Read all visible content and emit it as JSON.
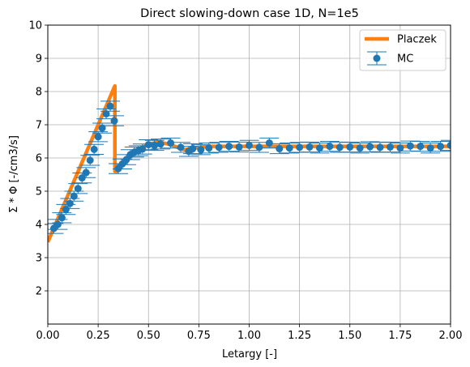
{
  "chart_data": {
    "type": "line",
    "title": "Direct slowing-down case 1D, N=1e5",
    "xlabel": "Letargy [-]",
    "ylabel": "Σ * Φ [-/cm3/s]",
    "xlim": [
      0,
      2
    ],
    "ylim": [
      1,
      10
    ],
    "xticks": [
      "0.00",
      "0.25",
      "0.50",
      "0.75",
      "1.00",
      "1.25",
      "1.50",
      "1.75",
      "2.00"
    ],
    "yticks": [
      "2",
      "3",
      "4",
      "5",
      "6",
      "7",
      "8",
      "9",
      "10"
    ],
    "grid": true,
    "legend_position": "top-right",
    "colors": {
      "placzek": "#ff7f0e",
      "mc": "#1f77b4"
    },
    "series": [
      {
        "name": "Placzek",
        "kind": "line",
        "x": [
          0.0,
          0.333,
          0.333,
          0.345,
          0.38,
          0.42,
          0.46,
          0.5,
          0.55,
          0.6,
          0.666,
          0.68,
          0.71,
          0.75,
          0.8,
          0.9,
          1.0,
          1.1,
          1.2,
          1.3,
          1.4,
          1.5,
          1.6,
          1.7,
          1.8,
          1.9,
          2.0
        ],
        "y": [
          3.47,
          8.17,
          5.6,
          5.6,
          5.86,
          6.1,
          6.28,
          6.42,
          6.47,
          6.42,
          6.27,
          6.25,
          6.28,
          6.32,
          6.35,
          6.35,
          6.35,
          6.35,
          6.35,
          6.35,
          6.35,
          6.35,
          6.35,
          6.35,
          6.35,
          6.35,
          6.35
        ]
      },
      {
        "name": "MC",
        "kind": "errorbar",
        "x": [
          0.03,
          0.05,
          0.07,
          0.09,
          0.11,
          0.13,
          0.15,
          0.17,
          0.19,
          0.21,
          0.23,
          0.25,
          0.27,
          0.29,
          0.31,
          0.33,
          0.35,
          0.37,
          0.39,
          0.41,
          0.43,
          0.45,
          0.47,
          0.5,
          0.53,
          0.56,
          0.61,
          0.66,
          0.7,
          0.72,
          0.76,
          0.8,
          0.85,
          0.9,
          0.95,
          1.0,
          1.05,
          1.1,
          1.15,
          1.2,
          1.25,
          1.3,
          1.35,
          1.4,
          1.45,
          1.5,
          1.55,
          1.6,
          1.65,
          1.7,
          1.75,
          1.8,
          1.85,
          1.9,
          1.95,
          2.0
        ],
        "y": [
          3.88,
          4.0,
          4.2,
          4.45,
          4.63,
          4.85,
          5.08,
          5.4,
          5.56,
          5.93,
          6.26,
          6.64,
          6.9,
          7.33,
          7.56,
          7.12,
          5.68,
          5.82,
          5.95,
          6.1,
          6.18,
          6.22,
          6.27,
          6.4,
          6.38,
          6.42,
          6.45,
          6.32,
          6.2,
          6.28,
          6.25,
          6.3,
          6.32,
          6.35,
          6.33,
          6.38,
          6.32,
          6.45,
          6.28,
          6.3,
          6.32,
          6.33,
          6.3,
          6.35,
          6.32,
          6.33,
          6.3,
          6.34,
          6.32,
          6.33,
          6.3,
          6.36,
          6.35,
          6.3,
          6.35,
          6.38
        ],
        "yerr": 0.15
      }
    ]
  }
}
